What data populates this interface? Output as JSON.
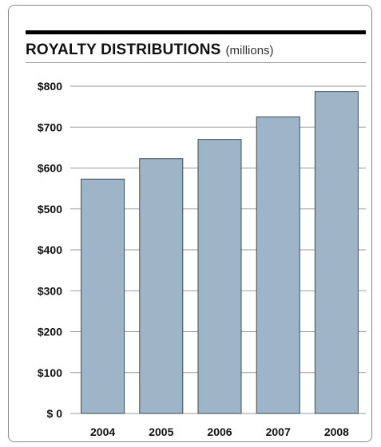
{
  "title": "ROYALTY DISTRIBUTIONS",
  "subtitle": "(millions)",
  "chart_data": {
    "type": "bar",
    "title": "ROYALTY DISTRIBUTIONS",
    "subtitle": "(millions)",
    "categories": [
      "2004",
      "2005",
      "2006",
      "2007",
      "2008"
    ],
    "values": [
      573,
      623,
      670,
      725,
      787
    ],
    "ylim": [
      0,
      800
    ],
    "y_ticks": [
      0,
      100,
      200,
      300,
      400,
      500,
      600,
      700,
      800
    ],
    "y_tick_labels": [
      "$    0",
      "$100",
      "$200",
      "$300",
      "$400",
      "$500",
      "$600",
      "$700",
      "$800"
    ],
    "grid": true,
    "bar_color": "#9db5c6",
    "bar_outline_color": "#3e4a52"
  }
}
